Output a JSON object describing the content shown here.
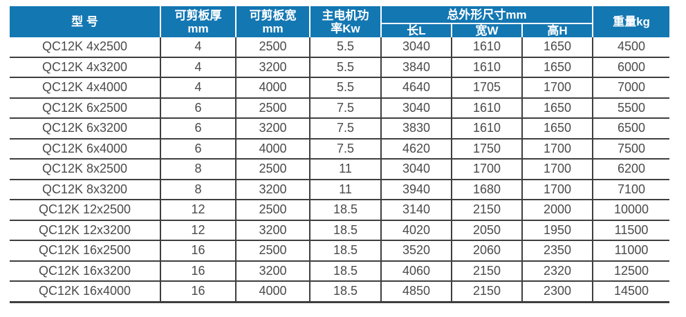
{
  "table": {
    "header": {
      "model": "型 号",
      "plate_thickness": "可剪板厚\nmm",
      "plate_width": "可剪板宽\nmm",
      "motor_power": "主电机功\n率Kw",
      "overall_dimensions": "总外形尺寸mm",
      "length": "长L",
      "width": "宽W",
      "height": "高H",
      "weight": "重量kg"
    },
    "rows": [
      [
        "QC12K 4x2500",
        "4",
        "2500",
        "5.5",
        "3040",
        "1610",
        "1650",
        "4500"
      ],
      [
        "QC12K 4x3200",
        "4",
        "3200",
        "5.5",
        "3840",
        "1610",
        "1650",
        "6000"
      ],
      [
        "QC12K 4x4000",
        "4",
        "4000",
        "5.5",
        "4640",
        "1705",
        "1700",
        "7000"
      ],
      [
        "QC12K 6x2500",
        "6",
        "2500",
        "7.5",
        "3040",
        "1610",
        "1650",
        "5500"
      ],
      [
        "QC12K 6x3200",
        "6",
        "3200",
        "7.5",
        "3830",
        "1610",
        "1650",
        "6500"
      ],
      [
        "QC12K 6x4000",
        "6",
        "4000",
        "7.5",
        "4620",
        "1750",
        "1700",
        "7500"
      ],
      [
        "QC12K 8x2500",
        "8",
        "2500",
        "11",
        "3040",
        "1700",
        "1700",
        "6200"
      ],
      [
        "QC12K 8x3200",
        "8",
        "3200",
        "11",
        "3940",
        "1680",
        "1700",
        "7100"
      ],
      [
        "QC12K 12x2500",
        "12",
        "2500",
        "18.5",
        "3140",
        "2150",
        "2000",
        "10000"
      ],
      [
        "QC12K 12x3200",
        "12",
        "3200",
        "18.5",
        "4020",
        "2050",
        "1950",
        "11500"
      ],
      [
        "QC12K 16x2500",
        "16",
        "2500",
        "18.5",
        "3520",
        "2060",
        "2350",
        "11000"
      ],
      [
        "QC12K 16x3200",
        "16",
        "3200",
        "18.5",
        "4060",
        "2150",
        "2320",
        "12500"
      ],
      [
        "QC12K 16x4000",
        "16",
        "4000",
        "18.5",
        "4850",
        "2150",
        "2300",
        "14500"
      ]
    ]
  },
  "colors": {
    "header_bg": "#1377b2",
    "header_text": "#ffffff",
    "body_text": "#4a4a4a",
    "grid_line": "#3e3e3e"
  }
}
